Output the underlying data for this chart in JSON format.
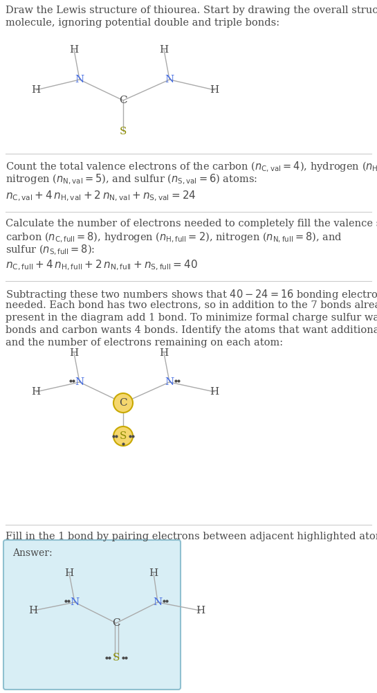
{
  "bg_color": "#ffffff",
  "text_color": "#4a4a4a",
  "N_color": "#4169e1",
  "H_color": "#4a4a4a",
  "C_color": "#4a4a4a",
  "S_color": "#8b8b00",
  "highlight_color": "#f5d76e",
  "highlight_border": "#c8a800",
  "bond_color": "#aaaaaa",
  "answer_box_color": "#d8eef5",
  "answer_box_border": "#90c0d0",
  "sep_color": "#cccccc"
}
